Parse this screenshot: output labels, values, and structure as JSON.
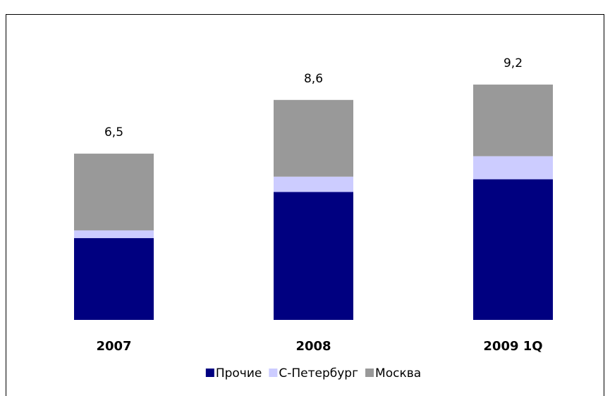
{
  "chart_data": {
    "type": "stacked_bar",
    "categories": [
      "2007",
      "2008",
      "2009 1Q"
    ],
    "series": [
      {
        "name": "Прочие",
        "color": "#000080",
        "values": [
          3.2,
          5.0,
          5.5
        ]
      },
      {
        "name": "С-Петербург",
        "color": "#ccccff",
        "values": [
          0.3,
          0.6,
          0.9
        ]
      },
      {
        "name": "Москва",
        "color": "#999999",
        "values": [
          3.0,
          3.0,
          2.8
        ]
      }
    ],
    "totals": [
      6.5,
      8.6,
      9.2
    ],
    "total_labels": [
      "6,5",
      "8,6",
      "9,2"
    ],
    "legend": "bottom"
  }
}
